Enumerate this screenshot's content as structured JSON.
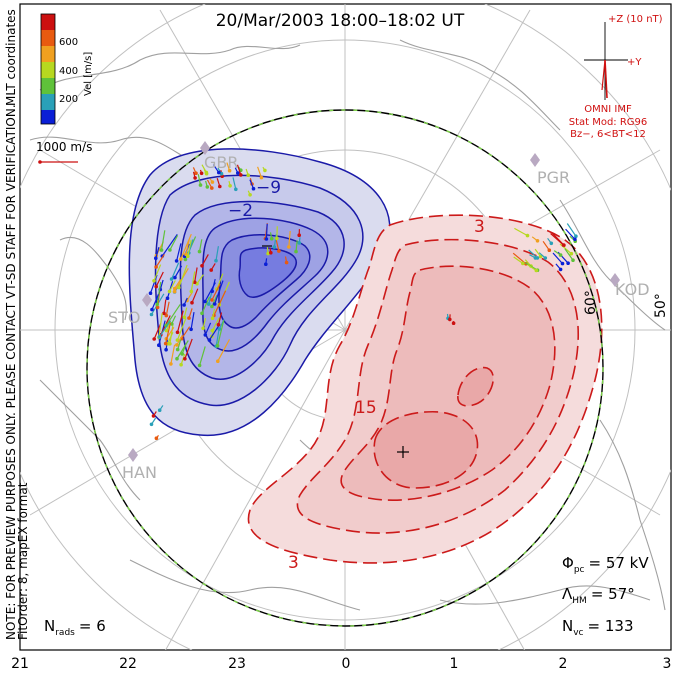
{
  "title": "20/Mar/2003 18:00–18:02 UT",
  "side_notes": {
    "preview": "NOTE: FOR PREVIEW PURPOSES ONLY. PLEASE CONTACT VT-SD STAFF FOR VERIFICATION.",
    "fitorder": "FitOrder: 8, mapEX format",
    "coords": "MLT coordinates"
  },
  "velocity_scale": {
    "label": "Vel [m/s]",
    "ticks": [
      "200",
      "400",
      "600"
    ],
    "colors": [
      "#0a1fd6",
      "#2aa0b8",
      "#5fc23a",
      "#b7d820",
      "#f0a020",
      "#e85a10",
      "#cc1010"
    ]
  },
  "vector_scale_label": "1000 m/s",
  "imf": {
    "scale_label": "+Z (10 nT)",
    "y_label": "+Y",
    "source": "OMNI IMF",
    "stat_model": "Stat Mod: RG96",
    "condition": "Bz−, 6<BT<12"
  },
  "stations": [
    "GBR",
    "PGR",
    "STO",
    "KOD",
    "HAN"
  ],
  "lat_labels": [
    "60°",
    "50°"
  ],
  "contour_labels": {
    "neg_min": "−2",
    "neg": "−9",
    "pos": "3",
    "pos_mid": "15",
    "pos_bottom": "3"
  },
  "stats": {
    "phi": "Φ",
    "phi_sub": "pc",
    "phi_value": "= 57 kV",
    "lambda": "Λ",
    "lambda_sub": "HM",
    "lambda_value": "= 57°",
    "nvc": "N",
    "nvc_sub": "vc",
    "nvc_value": "= 133",
    "nrads": "N",
    "nrads_sub": "rads",
    "nrads_value": "= 6"
  },
  "mlt_ticks": [
    "21",
    "22",
    "23",
    "0",
    "1",
    "2",
    "3"
  ],
  "colors": {
    "negative": "#1a1aa8",
    "positive": "#cc1a1a",
    "imf": "#d01010",
    "grid": "#b8b8b8",
    "coast": "#9a9a9a"
  }
}
